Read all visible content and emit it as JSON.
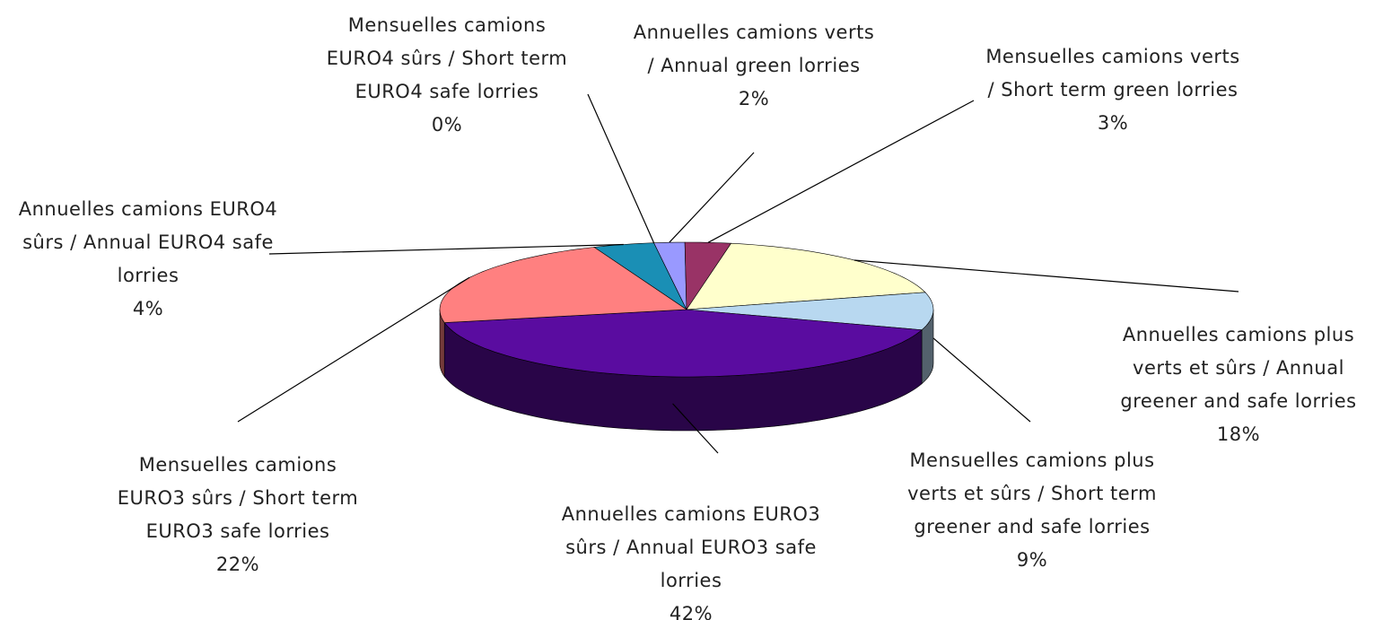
{
  "chart_data": {
    "type": "pie",
    "categories": [
      "Annuelles camions EURO4 sûrs / Annual EURO4 safe lorries",
      "Mensuelles camions EURO4 sûrs / Short term EURO4 safe lorries",
      "Annuelles camions verts / Annual green lorries",
      "Mensuelles camions verts / Short term green lorries",
      "Annuelles camions plus verts et sûrs / Annual greener and safe lorries",
      "Mensuelles camions plus verts et sûrs / Short term greener and safe lorries",
      "Annuelles camions EURO3 sûrs / Annual EURO3 safe lorries",
      "Mensuelles camions EURO3 sûrs / Short term EURO3 safe lorries"
    ],
    "values": [
      4,
      0,
      2,
      3,
      18,
      9,
      42,
      22
    ],
    "value_labels": [
      "4%",
      "0%",
      "2%",
      "3%",
      "18%",
      "9%",
      "42%",
      "22%"
    ],
    "colors": [
      "#1a8fb5",
      "#6fa8dc",
      "#9999ff",
      "#993366",
      "#ffffcc",
      "#b8d8f0",
      "#5a0ca0",
      "#ff8080"
    ]
  }
}
